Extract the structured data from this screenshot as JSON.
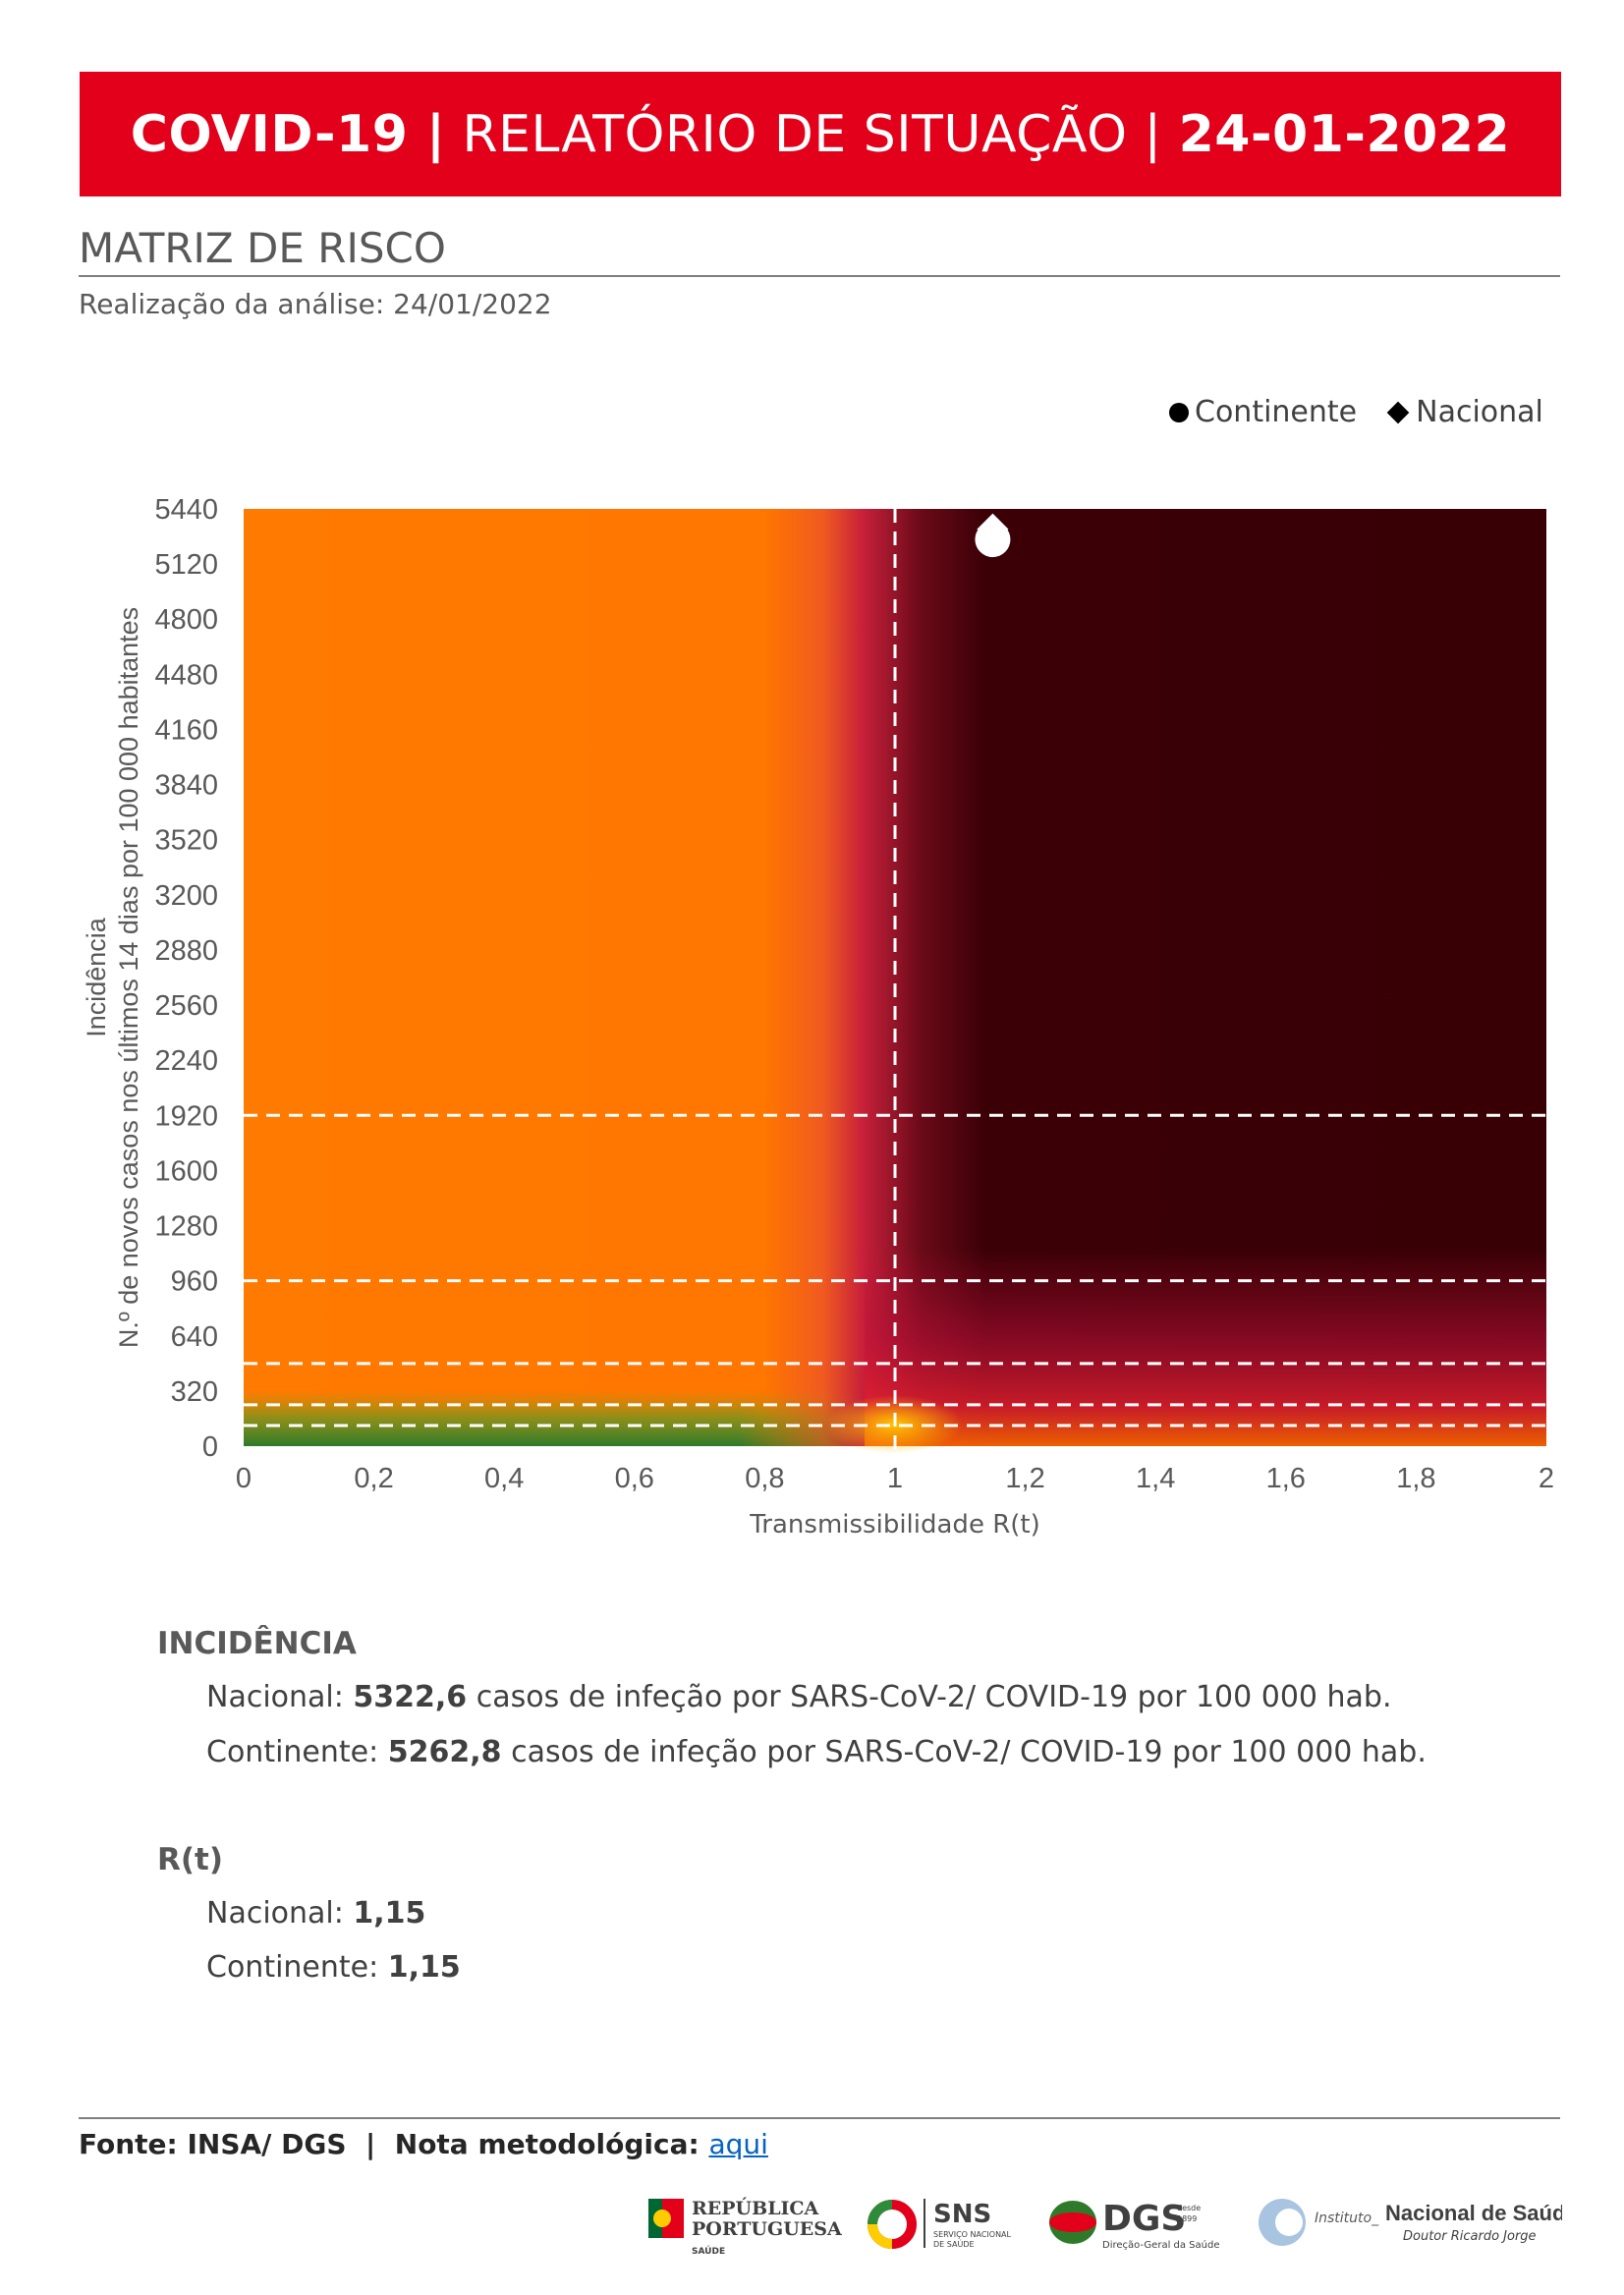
{
  "header": {
    "title_bold": "COVID-19 |",
    "title_mid": " RELATÓRIO DE SITUAÇÃO | ",
    "title_date": "24-01-2022"
  },
  "section": {
    "title": "MATRIZ DE RISCO",
    "subtitle": "Realização da análise: 24/01/2022"
  },
  "legend": {
    "continente": "Continente",
    "nacional": "Nacional"
  },
  "chart_data": {
    "type": "scatter",
    "title": "",
    "xlabel": "Transmissibilidade R(t)",
    "ylabel_line1": "Incidência",
    "ylabel_line2": "N.º de novos casos nos últimos 14 dias por 100 000 habitantes",
    "xlim": [
      0,
      2
    ],
    "ylim": [
      0,
      5440
    ],
    "x_ticks": [
      "0",
      "0,2",
      "0,4",
      "0,6",
      "0,8",
      "1",
      "1,2",
      "1,4",
      "1,6",
      "1,8",
      "2"
    ],
    "y_ticks": [
      "0",
      "320",
      "640",
      "960",
      "1280",
      "1600",
      "1920",
      "2240",
      "2560",
      "2880",
      "3200",
      "3520",
      "3840",
      "4160",
      "4480",
      "4800",
      "5120",
      "5440"
    ],
    "threshold_lines_y": [
      120,
      240,
      480,
      960,
      1920
    ],
    "threshold_line_x": 1,
    "legend_position": "top-right",
    "series": [
      {
        "name": "Continente",
        "marker": "circle",
        "x": 1.15,
        "y": 5262.8
      },
      {
        "name": "Nacional",
        "marker": "diamond",
        "x": 1.15,
        "y": 5322.6
      }
    ]
  },
  "incidencia": {
    "title": "INCIDÊNCIA",
    "nacional_label": "Nacional: ",
    "nacional_value": "5322,6",
    "nacional_suffix": " casos de infeção por SARS-CoV-2/ COVID-19 por 100 000 hab.",
    "continente_label": "Continente: ",
    "continente_value": "5262,8",
    "continente_suffix": " casos de infeção por SARS-CoV-2/ COVID-19 por 100 000 hab."
  },
  "rt": {
    "title": "R(t)",
    "nacional_label": "Nacional: ",
    "nacional_value": "1,15",
    "continente_label": "Continente: ",
    "continente_value": "1,15"
  },
  "footer": {
    "source": "Fonte: INSA/ DGS  |  Nota metodológica: ",
    "link": "aqui"
  },
  "logos": {
    "republica_1": "REPÚBLICA",
    "republica_2": "PORTUGUESA",
    "republica_3": "SAÚDE",
    "sns": "SNS",
    "sns_sub1": "SERVIÇO NACIONAL",
    "sns_sub2": "DE SAÚDE",
    "dgs": "DGS",
    "dgs_since1": "desde",
    "dgs_since2": "1899",
    "dgs_sub": "Direção-Geral da Saúde",
    "insa_prefix": "Instituto_",
    "insa_name": "Nacional de Saúde",
    "insa_sub": "Doutor Ricardo Jorge"
  }
}
